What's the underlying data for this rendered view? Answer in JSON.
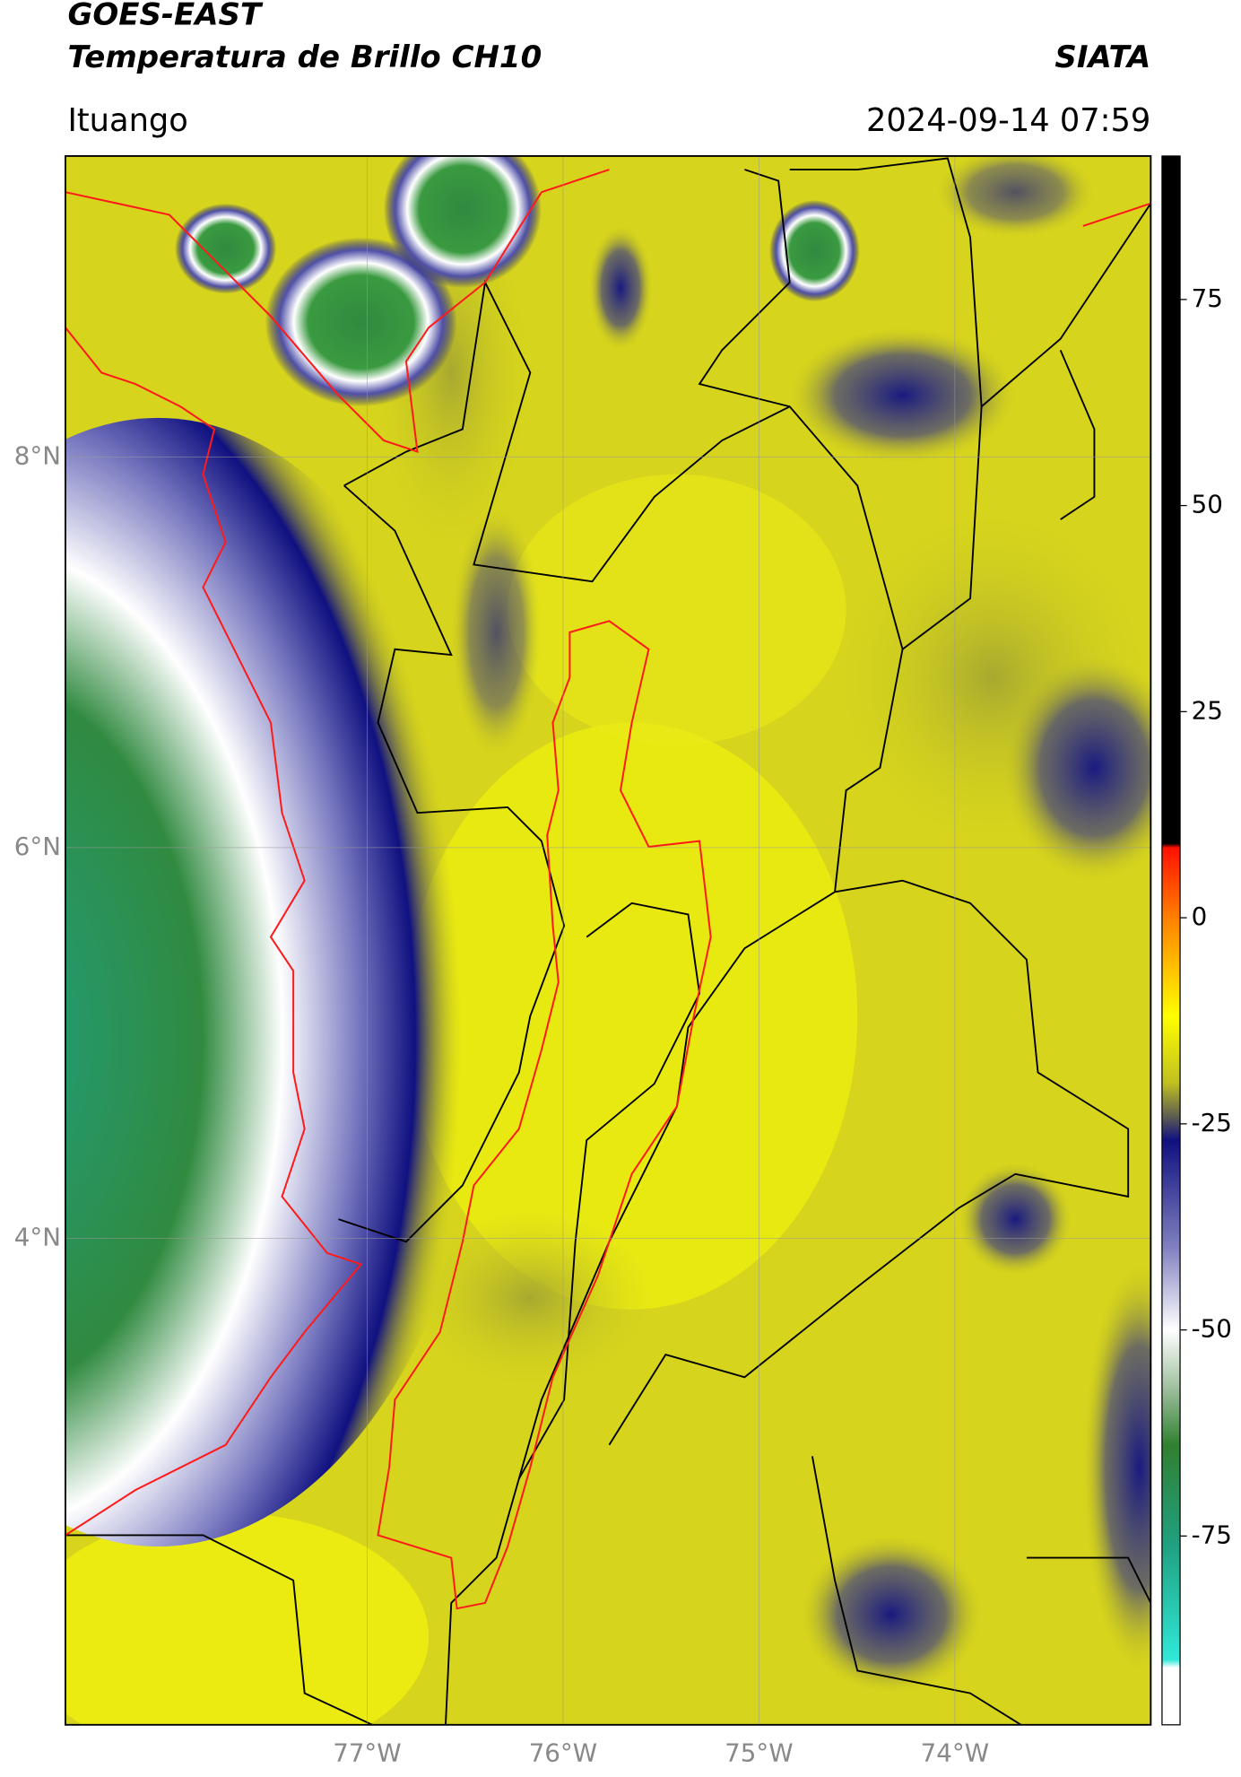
{
  "chart_data": {
    "type": "map",
    "title": "GOES-EAST",
    "subtitle": "Temperatura de Brillo CH10",
    "source": "SIATA",
    "region": "Ituango",
    "timestamp": "2024-09-14 07:59",
    "xlim": [
      -78.54,
      -73.0
    ],
    "ylim": [
      1.51,
      9.54
    ],
    "xticks": [
      {
        "value": -77,
        "label": "77°W"
      },
      {
        "value": -76,
        "label": "76°W"
      },
      {
        "value": -75,
        "label": "75°W"
      },
      {
        "value": -74,
        "label": "74°W"
      }
    ],
    "yticks": [
      {
        "value": 8,
        "label": "8°N"
      },
      {
        "value": 6,
        "label": "6°N"
      },
      {
        "value": 4,
        "label": "4°N"
      }
    ],
    "grid": true,
    "colorbar": {
      "clim": [
        -97.9,
        92.4
      ],
      "ticks": [
        75,
        50,
        25,
        0,
        -25,
        -50,
        -75
      ],
      "stops": [
        {
          "value": 92.4,
          "color": "#000000"
        },
        {
          "value": 9,
          "color": "#000000"
        },
        {
          "value": 8.5,
          "color": "#ff1000"
        },
        {
          "value": 0,
          "color": "#ff8000"
        },
        {
          "value": -12,
          "color": "#ffff00"
        },
        {
          "value": -20,
          "color": "#c0c020"
        },
        {
          "value": -24,
          "color": "#606050"
        },
        {
          "value": -27,
          "color": "#101080"
        },
        {
          "value": -40,
          "color": "#8080c0"
        },
        {
          "value": -50,
          "color": "#ffffff"
        },
        {
          "value": -57,
          "color": "#a0c0a0"
        },
        {
          "value": -64,
          "color": "#308030"
        },
        {
          "value": -76,
          "color": "#20a080"
        },
        {
          "value": -90,
          "color": "#30e8d8"
        },
        {
          "value": -91,
          "color": "#ffffff"
        },
        {
          "value": -97.9,
          "color": "#ffffff"
        }
      ]
    }
  }
}
